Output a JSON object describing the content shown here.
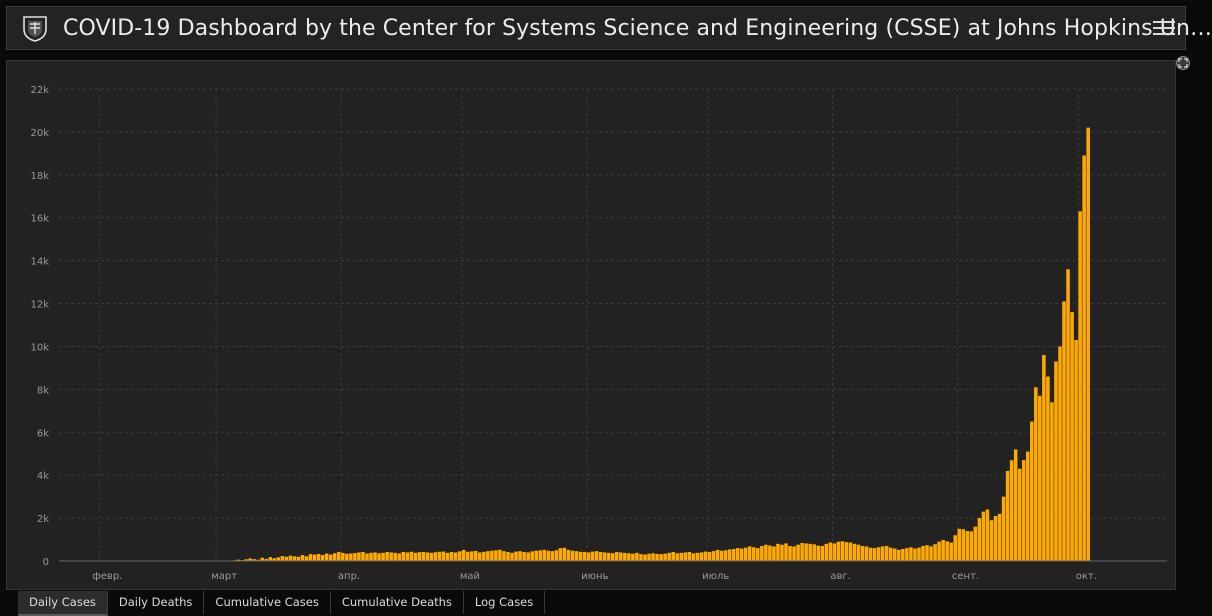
{
  "header": {
    "title": "COVID-19 Dashboard by the Center for Systems Science and Engineering (CSSE) at Johns Hopkins Un…",
    "logo_icon": "university-shield-icon",
    "menu_icon": "hamburger-menu-icon"
  },
  "tabs": [
    {
      "label": "Daily Cases",
      "active": true
    },
    {
      "label": "Daily Deaths",
      "active": false
    },
    {
      "label": "Cumulative Cases",
      "active": false
    },
    {
      "label": "Cumulative Deaths",
      "active": false
    },
    {
      "label": "Log Cases",
      "active": false
    }
  ],
  "colors": {
    "bar": "#ffaa00",
    "background": "#222222",
    "grid": "#3c3c3c",
    "text": "#9a9a9a"
  },
  "chart_data": {
    "type": "bar",
    "title": "",
    "xlabel": "",
    "ylabel": "",
    "ylim": [
      0,
      22000
    ],
    "yticks": [
      0,
      2000,
      4000,
      6000,
      8000,
      10000,
      12000,
      14000,
      16000,
      18000,
      20000,
      22000
    ],
    "ytick_labels": [
      "0",
      "2k",
      "4k",
      "6k",
      "8k",
      "10k",
      "12k",
      "14k",
      "16k",
      "18k",
      "20k",
      "22k"
    ],
    "x_start": "2020-01-22",
    "x_end": "2020-10-22",
    "month_ticks": [
      {
        "date": "2020-02-01",
        "label": "февр."
      },
      {
        "date": "2020-03-01",
        "label": "март"
      },
      {
        "date": "2020-04-01",
        "label": "апр."
      },
      {
        "date": "2020-05-01",
        "label": "май"
      },
      {
        "date": "2020-06-01",
        "label": "июнь"
      },
      {
        "date": "2020-07-01",
        "label": "июль"
      },
      {
        "date": "2020-08-01",
        "label": "авг."
      },
      {
        "date": "2020-09-01",
        "label": "сент."
      },
      {
        "date": "2020-10-01",
        "label": "окт."
      }
    ],
    "grid": true,
    "series": [
      {
        "values": [
          0,
          0,
          0,
          0,
          0,
          0,
          0,
          0,
          0,
          0,
          0,
          0,
          0,
          0,
          0,
          0,
          0,
          0,
          0,
          0,
          0,
          0,
          0,
          0,
          0,
          0,
          0,
          0,
          0,
          0,
          0,
          0,
          0,
          0,
          0,
          0,
          0,
          0,
          0,
          0,
          20,
          10,
          20,
          30,
          60,
          40,
          80,
          120,
          90,
          60,
          150,
          100,
          180,
          130,
          170,
          230,
          200,
          250,
          220,
          200,
          280,
          220,
          320,
          300,
          330,
          280,
          350,
          300,
          360,
          420,
          380,
          340,
          350,
          370,
          400,
          420,
          350,
          380,
          400,
          360,
          380,
          420,
          400,
          380,
          350,
          420,
          400,
          430,
          380,
          410,
          420,
          400,
          380,
          410,
          430,
          440,
          380,
          420,
          400,
          450,
          520,
          430,
          450,
          470,
          400,
          430,
          460,
          480,
          500,
          520,
          460,
          420,
          380,
          440,
          460,
          420,
          400,
          450,
          480,
          500,
          520,
          480,
          460,
          500,
          600,
          620,
          520,
          480,
          460,
          430,
          420,
          400,
          440,
          460,
          420,
          400,
          380,
          360,
          420,
          400,
          380,
          360,
          340,
          380,
          320,
          300,
          340,
          360,
          330,
          320,
          340,
          380,
          420,
          360,
          380,
          400,
          420,
          360,
          380,
          400,
          440,
          420,
          460,
          520,
          480,
          500,
          540,
          560,
          600,
          580,
          620,
          680,
          640,
          600,
          700,
          760,
          720,
          680,
          800,
          760,
          820,
          700,
          680,
          760,
          840,
          820,
          800,
          780,
          720,
          700,
          800,
          860,
          820,
          900,
          920,
          880,
          860,
          800,
          760,
          700,
          680,
          620,
          600,
          640,
          680,
          700,
          620,
          580,
          520,
          560,
          600,
          640,
          580,
          620,
          700,
          740,
          680,
          780,
          900,
          980,
          920,
          860,
          1200,
          1500,
          1480,
          1400,
          1380,
          1600,
          2000,
          2300,
          2400,
          1900,
          2100,
          2200,
          3000,
          4200,
          4700,
          5200,
          4300,
          4700,
          5100,
          6500,
          8100,
          7700,
          9600,
          8600,
          7400,
          9300,
          10000,
          12100,
          13600,
          11600,
          10300,
          16300,
          18900,
          20200
        ]
      }
    ]
  }
}
